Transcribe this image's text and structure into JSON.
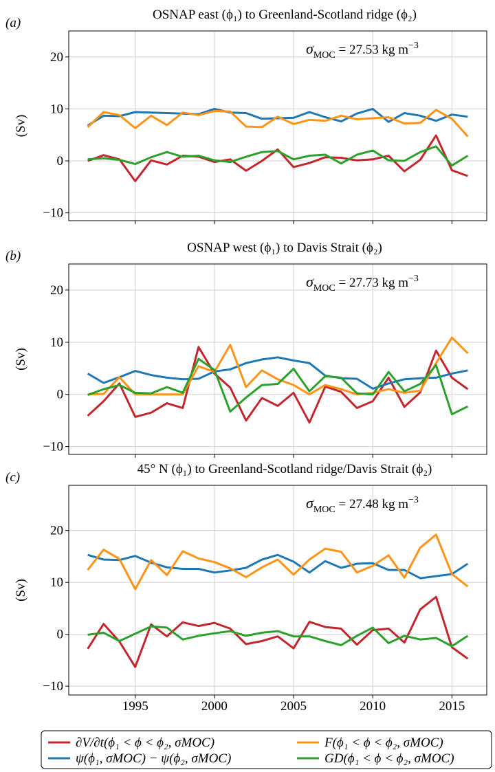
{
  "chart_data": [
    {
      "type": "line",
      "panel_label": "(a)",
      "title": "OSNAP east (ϕ₁) to Greenland-Scotland ridge (ϕ₂)",
      "y_label": "(Sv)",
      "annotation": {
        "symbol": "σ",
        "subscript": "MOC",
        "text": " = 27.53 kg m",
        "superscript": "−3"
      },
      "x": [
        1992,
        1993,
        1994,
        1995,
        1996,
        1997,
        1998,
        1999,
        2000,
        2001,
        2002,
        2003,
        2004,
        2005,
        2006,
        2007,
        2008,
        2009,
        2010,
        2011,
        2012,
        2013,
        2014,
        2015,
        2016
      ],
      "xlim": [
        1990.8,
        2017.2
      ],
      "xticks": [
        1995,
        2000,
        2005,
        2010,
        2015
      ],
      "xtick_labels": false,
      "ylim": [
        -11.5,
        25
      ],
      "yticks": [
        {
          "value": -10,
          "label": "−10"
        },
        0,
        10,
        20
      ],
      "grid": true,
      "series": [
        {
          "name": "∂V/∂t(ϕ₁ < ϕ < ϕ₂, σMOC)",
          "color": "#c1272d",
          "values": [
            0.0,
            1.1,
            0.3,
            -3.9,
            0.1,
            -0.7,
            1.0,
            0.8,
            -0.2,
            0.3,
            -1.9,
            0.0,
            2.2,
            -1.2,
            -0.4,
            0.7,
            0.6,
            0.1,
            0.3,
            1.0,
            -2.0,
            0.2,
            4.9,
            -1.8,
            -2.9
          ]
        },
        {
          "name": "ψ(ϕ₁, σMOC) − ψ(ϕ₂, σMOC)",
          "color": "#1f77b4",
          "values": [
            6.8,
            8.7,
            8.6,
            9.4,
            9.3,
            9.2,
            9.1,
            9.0,
            10.0,
            9.3,
            9.2,
            8.1,
            8.2,
            8.3,
            9.4,
            8.4,
            7.6,
            9.1,
            10.0,
            7.5,
            9.2,
            8.7,
            7.7,
            8.9,
            8.5
          ]
        },
        {
          "name": "F(ϕ₁ < ϕ < ϕ₂, σMOC)",
          "color": "#fd9418",
          "values": [
            6.5,
            9.4,
            8.8,
            6.3,
            8.7,
            6.9,
            9.3,
            8.8,
            9.6,
            9.5,
            6.6,
            6.5,
            8.5,
            7.1,
            7.9,
            7.7,
            8.7,
            8.0,
            8.2,
            8.4,
            7.2,
            7.3,
            9.8,
            8.1,
            4.7
          ]
        },
        {
          "name": "GD(ϕ₁ < ϕ < ϕ₂, σMOC)",
          "color": "#2ca02c",
          "values": [
            0.3,
            0.5,
            0.2,
            -0.6,
            0.7,
            1.7,
            0.8,
            1.0,
            0.1,
            -0.2,
            0.8,
            1.7,
            1.9,
            0.3,
            1.0,
            1.2,
            -0.5,
            1.2,
            2.0,
            0.1,
            0.0,
            1.7,
            2.8,
            -0.9,
            1.0
          ]
        }
      ]
    },
    {
      "type": "line",
      "panel_label": "(b)",
      "title": "OSNAP west (ϕ₁) to Davis Strait (ϕ₂)",
      "y_label": "(Sv)",
      "annotation": {
        "symbol": "σ",
        "subscript": "MOC",
        "text": " = 27.73 kg m",
        "superscript": "−3"
      },
      "x": [
        1992,
        1993,
        1994,
        1995,
        1996,
        1997,
        1998,
        1999,
        2000,
        2001,
        2002,
        2003,
        2004,
        2005,
        2006,
        2007,
        2008,
        2009,
        2010,
        2011,
        2012,
        2013,
        2014,
        2015,
        2016
      ],
      "xlim": [
        1990.8,
        2017.2
      ],
      "xticks": [
        1995,
        2000,
        2005,
        2010,
        2015
      ],
      "xtick_labels": false,
      "ylim": [
        -11.5,
        25
      ],
      "yticks": [
        {
          "value": -10,
          "label": "−10"
        },
        0,
        10,
        20
      ],
      "grid": true,
      "series": [
        {
          "color": "#c1272d",
          "values": [
            -4.1,
            -1.3,
            2.1,
            -4.3,
            -3.5,
            -1.7,
            -2.6,
            9.1,
            4.0,
            1.3,
            -5.0,
            -0.7,
            -2.2,
            0.3,
            -5.4,
            1.5,
            0.5,
            -2.6,
            -1.3,
            3.2,
            -2.4,
            0.4,
            8.4,
            3.2,
            1.0
          ]
        },
        {
          "color": "#1f77b4",
          "values": [
            4.0,
            2.2,
            3.3,
            4.5,
            3.7,
            3.2,
            2.9,
            3.0,
            4.4,
            4.8,
            6.0,
            6.7,
            7.1,
            6.5,
            6.0,
            3.6,
            3.1,
            3.0,
            1.1,
            2.1,
            2.9,
            3.1,
            3.2,
            4.0,
            4.6
          ]
        },
        {
          "color": "#fd9418",
          "values": [
            0.0,
            0.1,
            3.3,
            0.0,
            0.0,
            0.0,
            0.0,
            5.4,
            4.3,
            9.5,
            1.4,
            4.6,
            2.9,
            1.8,
            0.0,
            1.8,
            1.0,
            0.0,
            0.3,
            1.0,
            0.3,
            0.7,
            6.0,
            10.9,
            7.9
          ]
        },
        {
          "color": "#2ca02c",
          "values": [
            -0.1,
            1.0,
            1.8,
            0.3,
            0.2,
            1.4,
            0.3,
            6.8,
            4.7,
            -3.3,
            -0.6,
            1.8,
            2.0,
            4.9,
            0.6,
            3.5,
            3.2,
            0.2,
            0.0,
            4.3,
            0.6,
            2.0,
            5.6,
            -3.8,
            -2.3
          ]
        }
      ]
    },
    {
      "type": "line",
      "panel_label": "(c)",
      "title": "45° N (ϕ₁) to Greenland-Scotland ridge/Davis Strait (ϕ₂)",
      "y_label": "(Sv)",
      "annotation": {
        "symbol": "σ",
        "subscript": "MOC",
        "text": " = 27.48 kg m",
        "superscript": "−3"
      },
      "x": [
        1992,
        1993,
        1994,
        1995,
        1996,
        1997,
        1998,
        1999,
        2000,
        2001,
        2002,
        2003,
        2004,
        2005,
        2006,
        2007,
        2008,
        2009,
        2010,
        2011,
        2012,
        2013,
        2014,
        2015,
        2016
      ],
      "xlim": [
        1990.8,
        2017.2
      ],
      "xticks": [
        1995,
        2000,
        2005,
        2010,
        2015
      ],
      "xtick_labels": true,
      "ylim": [
        -11.7,
        28.7
      ],
      "yticks": [
        {
          "value": -10,
          "label": "−10"
        },
        0,
        10,
        20
      ],
      "grid": true,
      "series": [
        {
          "color": "#c1272d",
          "values": [
            -2.8,
            2.0,
            -1.4,
            -6.3,
            1.9,
            -0.4,
            2.3,
            1.6,
            2.2,
            1.1,
            -1.9,
            -1.3,
            -0.4,
            -2.7,
            2.4,
            1.4,
            1.1,
            -2.0,
            0.8,
            1.1,
            -1.6,
            4.8,
            7.2,
            -2.5,
            -4.7
          ]
        },
        {
          "color": "#1f77b4",
          "values": [
            15.3,
            14.4,
            14.3,
            15.1,
            13.8,
            12.9,
            12.6,
            12.6,
            11.9,
            12.3,
            12.8,
            14.4,
            15.3,
            14.0,
            11.9,
            14.1,
            12.8,
            13.6,
            13.7,
            12.4,
            12.4,
            10.8,
            11.2,
            11.6,
            13.6
          ]
        },
        {
          "color": "#fd9418",
          "values": [
            12.4,
            16.3,
            14.5,
            8.7,
            14.3,
            11.4,
            16.0,
            14.6,
            13.9,
            12.7,
            11.0,
            12.9,
            14.4,
            11.5,
            14.4,
            16.5,
            15.9,
            11.9,
            13.2,
            15.2,
            10.9,
            16.7,
            19.2,
            11.6,
            9.2
          ]
        },
        {
          "color": "#2ca02c",
          "values": [
            -0.1,
            0.3,
            -1.3,
            0.1,
            1.5,
            1.3,
            -1.0,
            -0.3,
            0.2,
            0.6,
            -0.3,
            0.3,
            0.6,
            -0.4,
            -0.4,
            -1.3,
            -2.1,
            -0.3,
            1.3,
            -1.7,
            -0.3,
            -1.0,
            -0.7,
            -2.3,
            -0.3
          ]
        }
      ]
    }
  ]
}
